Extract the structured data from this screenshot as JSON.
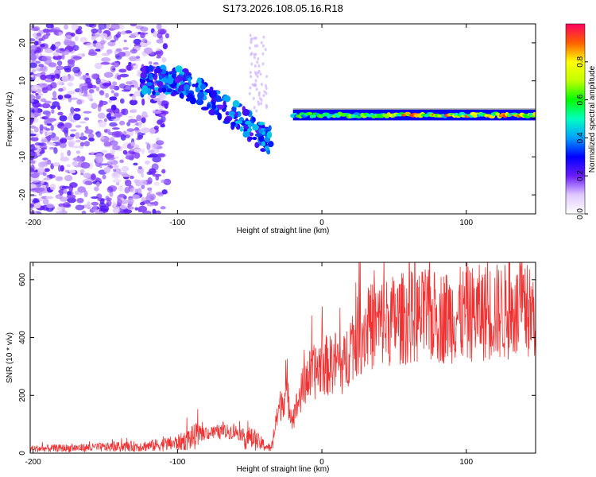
{
  "figure_title": "S173.2026.108.05.16.R18",
  "chart_data": [
    {
      "type": "heatmap",
      "title": "S173.2026.108.05.16.R18",
      "xlabel": "Height of straight line (km)",
      "ylabel": "Frequency (Hz)",
      "xlim": [
        -202,
        148
      ],
      "ylim": [
        -25,
        25
      ],
      "x_ticks": [
        -200,
        -100,
        0,
        100
      ],
      "y_ticks": [
        -20,
        -10,
        0,
        10,
        20
      ],
      "colorbar": {
        "label": "Normalized spectral amplitude",
        "range": [
          0,
          1
        ],
        "ticks": [
          0,
          0.2,
          0.4,
          0.6,
          0.8
        ],
        "tick_labels": [
          "0.0",
          "0.2",
          "0.4",
          "0.6",
          "0.8"
        ]
      },
      "ridge": {
        "description_points_x_km": [
          -110,
          -100,
          -90,
          -80,
          -70,
          -60,
          -50,
          -40,
          -35
        ],
        "description_points_freq_hz": [
          10,
          10,
          8,
          6,
          3,
          1,
          -2,
          -5,
          -6
        ],
        "carrier_start_km": -20,
        "carrier_end_km": 148,
        "carrier_freq_hz": 1
      }
    },
    {
      "type": "line",
      "xlabel": "Height of straight line (km)",
      "ylabel": "SNR (10 * v/v)",
      "xlim": [
        -202,
        148
      ],
      "ylim": [
        0,
        660
      ],
      "x_ticks": [
        -200,
        -100,
        0,
        100
      ],
      "y_ticks": [
        0,
        200,
        400,
        600
      ],
      "color": "#f03232",
      "trend": {
        "x": [
          -202,
          -150,
          -120,
          -100,
          -80,
          -60,
          -45,
          -35,
          -30,
          -25,
          -20,
          -15,
          -10,
          -5,
          0,
          5,
          10,
          15,
          20,
          30,
          40,
          60,
          80,
          100,
          120,
          148
        ],
        "y": [
          15,
          20,
          25,
          35,
          70,
          75,
          40,
          15,
          150,
          210,
          120,
          200,
          260,
          280,
          310,
          300,
          320,
          300,
          380,
          430,
          450,
          470,
          470,
          480,
          490,
          480
        ]
      }
    }
  ]
}
